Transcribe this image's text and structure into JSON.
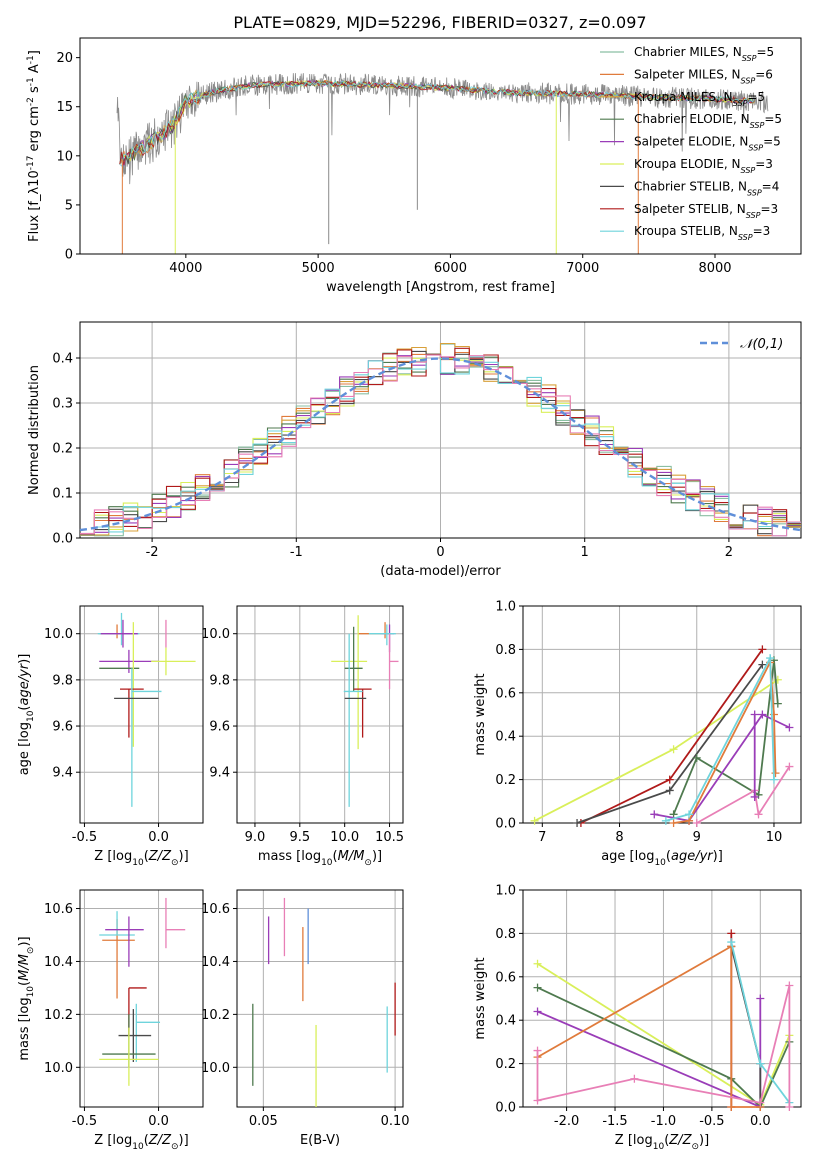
{
  "figure_title": "PLATE=0829, MJD=52296, FIBERID=0327, z=0.097",
  "colors": {
    "chabrier_miles": "#8bbfa3",
    "salpeter_miles": "#e07b3c",
    "kroupa_miles": "#d8a03a",
    "chabrier_elodie": "#4f7a4f",
    "salpeter_elodie": "#9a3db8",
    "kroupa_elodie": "#d9ef5a",
    "chabrier_stelib": "#4a4a4a",
    "salpeter_stelib": "#b01a1a",
    "kroupa_stelib": "#6fd4dc",
    "pink": "#e87fb6",
    "blue": "#5f8fd9",
    "spectrum": "#8a8a8a",
    "grid": "#b0b0b0"
  },
  "chart_data": [
    {
      "type": "line",
      "xlabel": "wavelength [Angstrom, rest frame]",
      "ylabel": "Flux [f_λ 10^-17 erg cm^-2 s^-1 A^-1]",
      "xlim": [
        3200,
        8650
      ],
      "ylim": [
        0,
        22
      ],
      "xticks": [
        4000,
        5000,
        6000,
        7000,
        8000
      ],
      "yticks": [
        0,
        5,
        10,
        15,
        20
      ],
      "legend_position": "top-right",
      "series": [
        {
          "name": "Chabrier MILES, N_SSP=5",
          "color_key": "chabrier_miles"
        },
        {
          "name": "Salpeter MILES, N_SSP=6",
          "color_key": "salpeter_miles"
        },
        {
          "name": "Kroupa MILES, N_SSP=5",
          "color_key": "kroupa_miles"
        },
        {
          "name": "Chabrier ELODIE, N_SSP=5",
          "color_key": "chabrier_elodie"
        },
        {
          "name": "Salpeter ELODIE, N_SSP=5",
          "color_key": "salpeter_elodie"
        },
        {
          "name": "Kroupa ELODIE, N_SSP=3",
          "color_key": "kroupa_elodie"
        },
        {
          "name": "Chabrier STELIB, N_SSP=4",
          "color_key": "chabrier_stelib"
        },
        {
          "name": "Salpeter STELIB, N_SSP=3",
          "color_key": "salpeter_stelib"
        },
        {
          "name": "Kroupa STELIB, N_SSP=3",
          "color_key": "kroupa_stelib"
        }
      ],
      "continuum": {
        "x": [
          3500,
          3700,
          3900,
          4000,
          4200,
          4500,
          5000,
          5500,
          6000,
          6500,
          7000,
          7500,
          8000,
          8400
        ],
        "y": [
          9.5,
          11.0,
          13.0,
          15.5,
          16.5,
          17.2,
          17.4,
          17.2,
          16.9,
          16.4,
          16.3,
          16.0,
          15.8,
          15.5
        ]
      },
      "dropouts": [
        {
          "x": 3520,
          "y": 0.0,
          "color_key": "salpeter_miles"
        },
        {
          "x": 3920,
          "y": 0.0,
          "color_key": "kroupa_elodie"
        },
        {
          "x": 5080,
          "y": 1.0,
          "color_key": "spectrum"
        },
        {
          "x": 5750,
          "y": 4.5,
          "color_key": "spectrum"
        },
        {
          "x": 6800,
          "y": 0.0,
          "color_key": "kroupa_elodie"
        },
        {
          "x": 7420,
          "y": 0.0,
          "color_key": "salpeter_miles"
        }
      ]
    },
    {
      "type": "step",
      "xlabel": "(data-model)/error",
      "ylabel": "Normed distribution",
      "xlim": [
        -2.5,
        2.5
      ],
      "ylim": [
        0,
        0.48
      ],
      "xticks": [
        -2,
        -1,
        0,
        1,
        2
      ],
      "yticks": [
        0.0,
        0.1,
        0.2,
        0.3,
        0.4
      ],
      "legend_position": "top-right",
      "reference_curve": {
        "name": "𝒩(0,1)",
        "color_key": "blue",
        "mu": 0,
        "sigma": 1
      },
      "bin_width": 0.1
    },
    {
      "type": "scatter",
      "xlabel": "Z [log10(Z/Z⊙)]",
      "ylabel": "age  [log10(age/yr)]",
      "xlim": [
        -0.53,
        0.3
      ],
      "ylim": [
        9.18,
        10.12
      ],
      "xticks": [
        -0.5,
        0.0
      ],
      "yticks": [
        9.4,
        9.6,
        9.8,
        10.0
      ],
      "points": [
        {
          "x": -0.28,
          "y": 10.0,
          "xerr": [
            0.12,
            0.12
          ],
          "yerr": [
            0.02,
            0.04
          ],
          "color_key": "salpeter_miles"
        },
        {
          "x": -0.25,
          "y": 10.0,
          "xerr": [
            0.16,
            0.12
          ],
          "yerr": [
            0.05,
            0.09
          ],
          "color_key": "kroupa_stelib"
        },
        {
          "x": -0.24,
          "y": 10.0,
          "xerr": [
            0.15,
            0.1
          ],
          "yerr": [
            0.06,
            0.06
          ],
          "color_key": "salpeter_elodie"
        },
        {
          "x": 0.05,
          "y": 10.0,
          "xerr": [
            0.0,
            0.0
          ],
          "yerr": [
            0.06,
            0.06
          ],
          "color_key": "pink"
        },
        {
          "x": -0.2,
          "y": 9.88,
          "xerr": [
            0.2,
            0.2
          ],
          "yerr": [
            0.05,
            0.05
          ],
          "color_key": "salpeter_elodie"
        },
        {
          "x": 0.05,
          "y": 9.88,
          "xerr": [
            0.1,
            0.2
          ],
          "yerr": [
            0.06,
            0.06
          ],
          "color_key": "kroupa_elodie"
        },
        {
          "x": -0.25,
          "y": 9.85,
          "xerr": [
            0.15,
            0.12
          ],
          "yerr": [
            0.0,
            0.0
          ],
          "color_key": "chabrier_elodie"
        },
        {
          "x": -0.17,
          "y": 9.85,
          "xerr": [
            0.0,
            0.0
          ],
          "yerr": [
            0.34,
            0.2
          ],
          "color_key": "kroupa_elodie"
        },
        {
          "x": -0.2,
          "y": 9.76,
          "xerr": [
            0.06,
            0.1
          ],
          "yerr": [
            0.21,
            0.0
          ],
          "color_key": "salpeter_stelib"
        },
        {
          "x": -0.18,
          "y": 9.75,
          "xerr": [
            0.0,
            0.2
          ],
          "yerr": [
            0.5,
            0.1
          ],
          "color_key": "kroupa_stelib"
        },
        {
          "x": -0.15,
          "y": 9.72,
          "xerr": [
            0.15,
            0.15
          ],
          "yerr": [
            0.0,
            0.0
          ],
          "color_key": "chabrier_stelib"
        }
      ]
    },
    {
      "type": "scatter",
      "xlabel": "mass [log10(M/M⊙)]",
      "ylabel": "",
      "xlim": [
        8.8,
        10.65
      ],
      "ylim": [
        9.18,
        10.12
      ],
      "xticks": [
        9.0,
        9.5,
        10.0,
        10.5
      ],
      "yticks": [
        9.4,
        9.6,
        9.8,
        10.0
      ],
      "points": [
        {
          "x": 10.45,
          "y": 10.0,
          "xerr": [
            0.3,
            0.05
          ],
          "yerr": [
            0.02,
            0.05
          ],
          "color_key": "salpeter_miles"
        },
        {
          "x": 10.5,
          "y": 10.0,
          "xerr": [
            0.1,
            0.05
          ],
          "yerr": [
            0.08,
            0.04
          ],
          "color_key": "salpeter_elodie"
        },
        {
          "x": 10.47,
          "y": 10.0,
          "xerr": [
            0.2,
            0.1
          ],
          "yerr": [
            0.05,
            0.04
          ],
          "color_key": "kroupa_stelib"
        },
        {
          "x": 10.5,
          "y": 9.88,
          "xerr": [
            0.0,
            0.1
          ],
          "yerr": [
            0.12,
            0.12
          ],
          "color_key": "pink"
        },
        {
          "x": 10.15,
          "y": 9.88,
          "xerr": [
            0.3,
            0.1
          ],
          "yerr": [
            0.38,
            0.2
          ],
          "color_key": "kroupa_elodie"
        },
        {
          "x": 10.1,
          "y": 9.85,
          "xerr": [
            0.1,
            0.1
          ],
          "yerr": [
            0.1,
            0.18
          ],
          "color_key": "chabrier_elodie"
        },
        {
          "x": 10.2,
          "y": 9.76,
          "xerr": [
            0.1,
            0.1
          ],
          "yerr": [
            0.21,
            0.0
          ],
          "color_key": "salpeter_stelib"
        },
        {
          "x": 10.05,
          "y": 9.75,
          "xerr": [
            0.06,
            0.15
          ],
          "yerr": [
            0.5,
            0.25
          ],
          "color_key": "kroupa_stelib"
        },
        {
          "x": 10.12,
          "y": 9.72,
          "xerr": [
            0.12,
            0.12
          ],
          "yerr": [
            0.0,
            0.0
          ],
          "color_key": "chabrier_stelib"
        }
      ]
    },
    {
      "type": "line",
      "xlabel": "age  [log10(age/yr)]",
      "ylabel": "mass weight",
      "xlim": [
        6.75,
        10.35
      ],
      "ylim": [
        0,
        1.0
      ],
      "xticks": [
        7,
        8,
        9,
        10
      ],
      "yticks": [
        0.0,
        0.2,
        0.4,
        0.6,
        0.8,
        1.0
      ],
      "series": [
        {
          "color_key": "kroupa_elodie",
          "x": [
            6.9,
            8.7,
            10.05
          ],
          "y": [
            0.01,
            0.34,
            0.66
          ]
        },
        {
          "color_key": "salpeter_stelib",
          "x": [
            7.5,
            8.65,
            9.85
          ],
          "y": [
            0.0,
            0.2,
            0.8
          ]
        },
        {
          "color_key": "chabrier_stelib",
          "x": [
            7.45,
            8.65,
            9.85
          ],
          "y": [
            0.0,
            0.15,
            0.73
          ]
        },
        {
          "color_key": "chabrier_elodie",
          "x": [
            8.7,
            9.0,
            9.8,
            10.0,
            10.05
          ],
          "y": [
            0.04,
            0.3,
            0.13,
            0.75,
            0.55
          ]
        },
        {
          "color_key": "salpeter_elodie",
          "x": [
            8.45,
            8.9,
            9.85,
            10.2
          ],
          "y": [
            0.04,
            0.01,
            0.5,
            0.44
          ]
        },
        {
          "color_key": "salpeter_miles",
          "x": [
            8.7,
            8.9,
            9.95,
            10.0,
            10.02
          ],
          "y": [
            0.0,
            0.01,
            0.74,
            0.5,
            0.23
          ]
        },
        {
          "color_key": "kroupa_stelib",
          "x": [
            8.6,
            8.9,
            9.95,
            10.0
          ],
          "y": [
            0.01,
            0.04,
            0.76,
            0.2
          ]
        },
        {
          "color_key": "pink",
          "x": [
            9.0,
            9.75,
            9.8,
            10.2
          ],
          "y": [
            0.0,
            0.15,
            0.04,
            0.26
          ]
        },
        {
          "color_key": "salpeter_elodie",
          "x": [
            9.75,
            9.75
          ],
          "y": [
            0.12,
            0.5
          ]
        }
      ]
    },
    {
      "type": "scatter",
      "xlabel": "Z [log10(Z/Z⊙)]",
      "ylabel": "mass [log10(M/M⊙)]",
      "xlim": [
        -0.53,
        0.3
      ],
      "ylim": [
        9.85,
        10.67
      ],
      "xticks": [
        -0.5,
        0.0
      ],
      "yticks": [
        10.0,
        10.2,
        10.4,
        10.6
      ],
      "points": [
        {
          "x": -0.28,
          "y": 10.48,
          "xerr": [
            0.1,
            0.12
          ],
          "yerr": [
            0.22,
            0.08
          ],
          "color_key": "salpeter_miles"
        },
        {
          "x": -0.28,
          "y": 10.5,
          "xerr": [
            0.12,
            0.12
          ],
          "yerr": [
            0.0,
            0.09
          ],
          "color_key": "kroupa_stelib"
        },
        {
          "x": -0.2,
          "y": 10.52,
          "xerr": [
            0.16,
            0.1
          ],
          "yerr": [
            0.14,
            0.05
          ],
          "color_key": "salpeter_elodie"
        },
        {
          "x": 0.05,
          "y": 10.52,
          "xerr": [
            0.0,
            0.13
          ],
          "yerr": [
            0.07,
            0.12
          ],
          "color_key": "pink"
        },
        {
          "x": -0.2,
          "y": 10.3,
          "xerr": [
            0.0,
            0.12
          ],
          "yerr": [
            0.18,
            0.0
          ],
          "color_key": "salpeter_stelib"
        },
        {
          "x": -0.15,
          "y": 10.17,
          "xerr": [
            0.0,
            0.16
          ],
          "yerr": [
            0.15,
            0.07
          ],
          "color_key": "kroupa_stelib"
        },
        {
          "x": -0.17,
          "y": 10.12,
          "xerr": [
            0.1,
            0.12
          ],
          "yerr": [
            0.1,
            0.1
          ],
          "color_key": "chabrier_stelib"
        },
        {
          "x": -0.2,
          "y": 10.05,
          "xerr": [
            0.18,
            0.18
          ],
          "yerr": [
            0.05,
            0.15
          ],
          "color_key": "chabrier_elodie"
        },
        {
          "x": -0.2,
          "y": 10.03,
          "xerr": [
            0.2,
            0.2
          ],
          "yerr": [
            0.1,
            0.12
          ],
          "color_key": "kroupa_elodie"
        }
      ]
    },
    {
      "type": "scatter",
      "xlabel": "E(B-V)",
      "ylabel": "",
      "xlim": [
        0.04,
        0.103
      ],
      "ylim": [
        9.85,
        10.67
      ],
      "xticks": [
        0.05,
        0.1
      ],
      "yticks": [
        10.0,
        10.2,
        10.4,
        10.6
      ],
      "points": [
        {
          "x": 0.046,
          "y": 10.07,
          "yerr": [
            0.14,
            0.17
          ],
          "color_key": "chabrier_elodie"
        },
        {
          "x": 0.052,
          "y": 10.48,
          "yerr": [
            0.09,
            0.09
          ],
          "color_key": "salpeter_elodie"
        },
        {
          "x": 0.058,
          "y": 10.52,
          "yerr": [
            0.1,
            0.12
          ],
          "color_key": "pink"
        },
        {
          "x": 0.065,
          "y": 10.45,
          "yerr": [
            0.2,
            0.08
          ],
          "color_key": "salpeter_miles"
        },
        {
          "x": 0.067,
          "y": 10.5,
          "yerr": [
            0.11,
            0.1
          ],
          "color_key": "blue"
        },
        {
          "x": 0.07,
          "y": 10.05,
          "yerr": [
            0.2,
            0.11
          ],
          "color_key": "kroupa_elodie"
        },
        {
          "x": 0.097,
          "y": 10.1,
          "yerr": [
            0.12,
            0.13
          ],
          "color_key": "kroupa_stelib"
        },
        {
          "x": 0.1,
          "y": 10.2,
          "yerr": [
            0.08,
            0.12
          ],
          "color_key": "salpeter_stelib"
        }
      ]
    },
    {
      "type": "line",
      "xlabel": "Z [log10(Z/Z⊙)]",
      "ylabel": "mass weight",
      "xlim": [
        -2.45,
        0.42
      ],
      "ylim": [
        0,
        1.0
      ],
      "xticks": [
        -2.0,
        -1.5,
        -1.0,
        -0.5,
        0.0
      ],
      "yticks": [
        0.0,
        0.2,
        0.4,
        0.6,
        0.8,
        1.0
      ],
      "series": [
        {
          "color_key": "kroupa_elodie",
          "x": [
            -2.3,
            0.0,
            0.3
          ],
          "y": [
            0.66,
            0.01,
            0.33
          ]
        },
        {
          "color_key": "chabrier_elodie",
          "x": [
            -2.3,
            -0.3,
            0.0,
            0.3
          ],
          "y": [
            0.55,
            0.13,
            0.0,
            0.3
          ]
        },
        {
          "color_key": "salpeter_elodie",
          "x": [
            -2.3,
            0.0,
            0.0
          ],
          "y": [
            0.44,
            0.0,
            0.5
          ]
        },
        {
          "color_key": "salpeter_stelib",
          "x": [
            -0.3,
            -0.3
          ],
          "y": [
            0.8,
            0.0
          ]
        },
        {
          "color_key": "chabrier_stelib",
          "x": [
            -0.3,
            0.0,
            0.0
          ],
          "y": [
            0.74,
            0.2,
            0.0
          ]
        },
        {
          "color_key": "salpeter_miles",
          "x": [
            -2.3,
            -0.3,
            -0.3,
            0.0
          ],
          "y": [
            0.23,
            0.74,
            0.0,
            0.0
          ]
        },
        {
          "color_key": "kroupa_stelib",
          "x": [
            -0.3,
            0.0,
            0.3
          ],
          "y": [
            0.76,
            0.2,
            0.02
          ]
        },
        {
          "color_key": "pink",
          "x": [
            -2.3,
            -2.3,
            -1.3,
            0.0,
            0.3,
            0.3
          ],
          "y": [
            0.26,
            0.03,
            0.13,
            0.02,
            0.56,
            0.0
          ]
        }
      ]
    }
  ]
}
